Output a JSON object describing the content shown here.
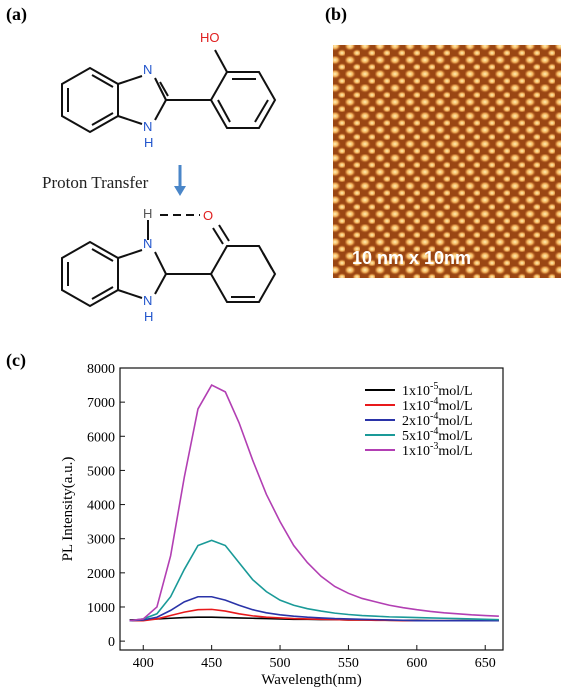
{
  "panels": {
    "a": "(a)",
    "b": "(b)",
    "c": "(c)"
  },
  "diagram": {
    "top": {
      "hydroxyl": "HO",
      "n1": "N",
      "n2": "N",
      "nh": "H"
    },
    "arrow_label": "Proton Transfer",
    "bottom": {
      "h": "H",
      "o": "O",
      "n1": "N",
      "n2": "N",
      "nh": "H"
    }
  },
  "stm": {
    "scale_label": "10 nm x 10nm"
  },
  "chart_data": {
    "type": "line",
    "x_label": "Wavelength(nm)",
    "y_label": "PL Intensity(a.u.)",
    "x": [
      390,
      400,
      410,
      420,
      430,
      440,
      450,
      460,
      470,
      480,
      490,
      500,
      510,
      520,
      530,
      540,
      550,
      560,
      570,
      580,
      590,
      600,
      610,
      620,
      630,
      640,
      650,
      660
    ],
    "series": [
      {
        "name": "1x10-5mol/L",
        "color": "#000000",
        "values": [
          620,
          630,
          650,
          670,
          690,
          700,
          700,
          690,
          680,
          670,
          660,
          650,
          640,
          640,
          630,
          630,
          620,
          620,
          620,
          610,
          610,
          610,
          600,
          600,
          600,
          600,
          600,
          600
        ]
      },
      {
        "name": "1x10-4mol/L",
        "color": "#e8191b",
        "values": [
          600,
          600,
          650,
          750,
          850,
          920,
          930,
          880,
          800,
          740,
          700,
          680,
          660,
          650,
          640,
          630,
          620,
          620,
          610,
          610,
          600,
          600,
          600,
          600,
          600,
          600,
          600,
          600
        ]
      },
      {
        "name": "2x10-4mol/L",
        "color": "#2a33a8",
        "values": [
          600,
          620,
          700,
          900,
          1150,
          1300,
          1300,
          1200,
          1050,
          920,
          830,
          770,
          730,
          700,
          680,
          660,
          650,
          640,
          630,
          620,
          610,
          600,
          600,
          600,
          600,
          600,
          600,
          600
        ]
      },
      {
        "name": "5x10-4mol/L",
        "color": "#1a9a98",
        "values": [
          600,
          650,
          800,
          1300,
          2100,
          2800,
          2950,
          2800,
          2300,
          1800,
          1450,
          1200,
          1050,
          950,
          880,
          820,
          780,
          750,
          730,
          710,
          700,
          690,
          680,
          670,
          660,
          650,
          640,
          630
        ]
      },
      {
        "name": "1x10-3mol/L",
        "color": "#b23fb3",
        "values": [
          600,
          650,
          1000,
          2500,
          4800,
          6800,
          7500,
          7300,
          6400,
          5300,
          4300,
          3500,
          2800,
          2300,
          1900,
          1600,
          1400,
          1250,
          1150,
          1050,
          980,
          920,
          870,
          830,
          800,
          770,
          750,
          730
        ]
      }
    ],
    "xlim": [
      383,
      663
    ],
    "ylim": [
      -260,
      8000
    ],
    "xticks": [
      400,
      450,
      500,
      550,
      600,
      650
    ],
    "yticks": [
      0,
      1000,
      2000,
      3000,
      4000,
      5000,
      6000,
      7000,
      8000
    ],
    "legend": "upper right"
  }
}
